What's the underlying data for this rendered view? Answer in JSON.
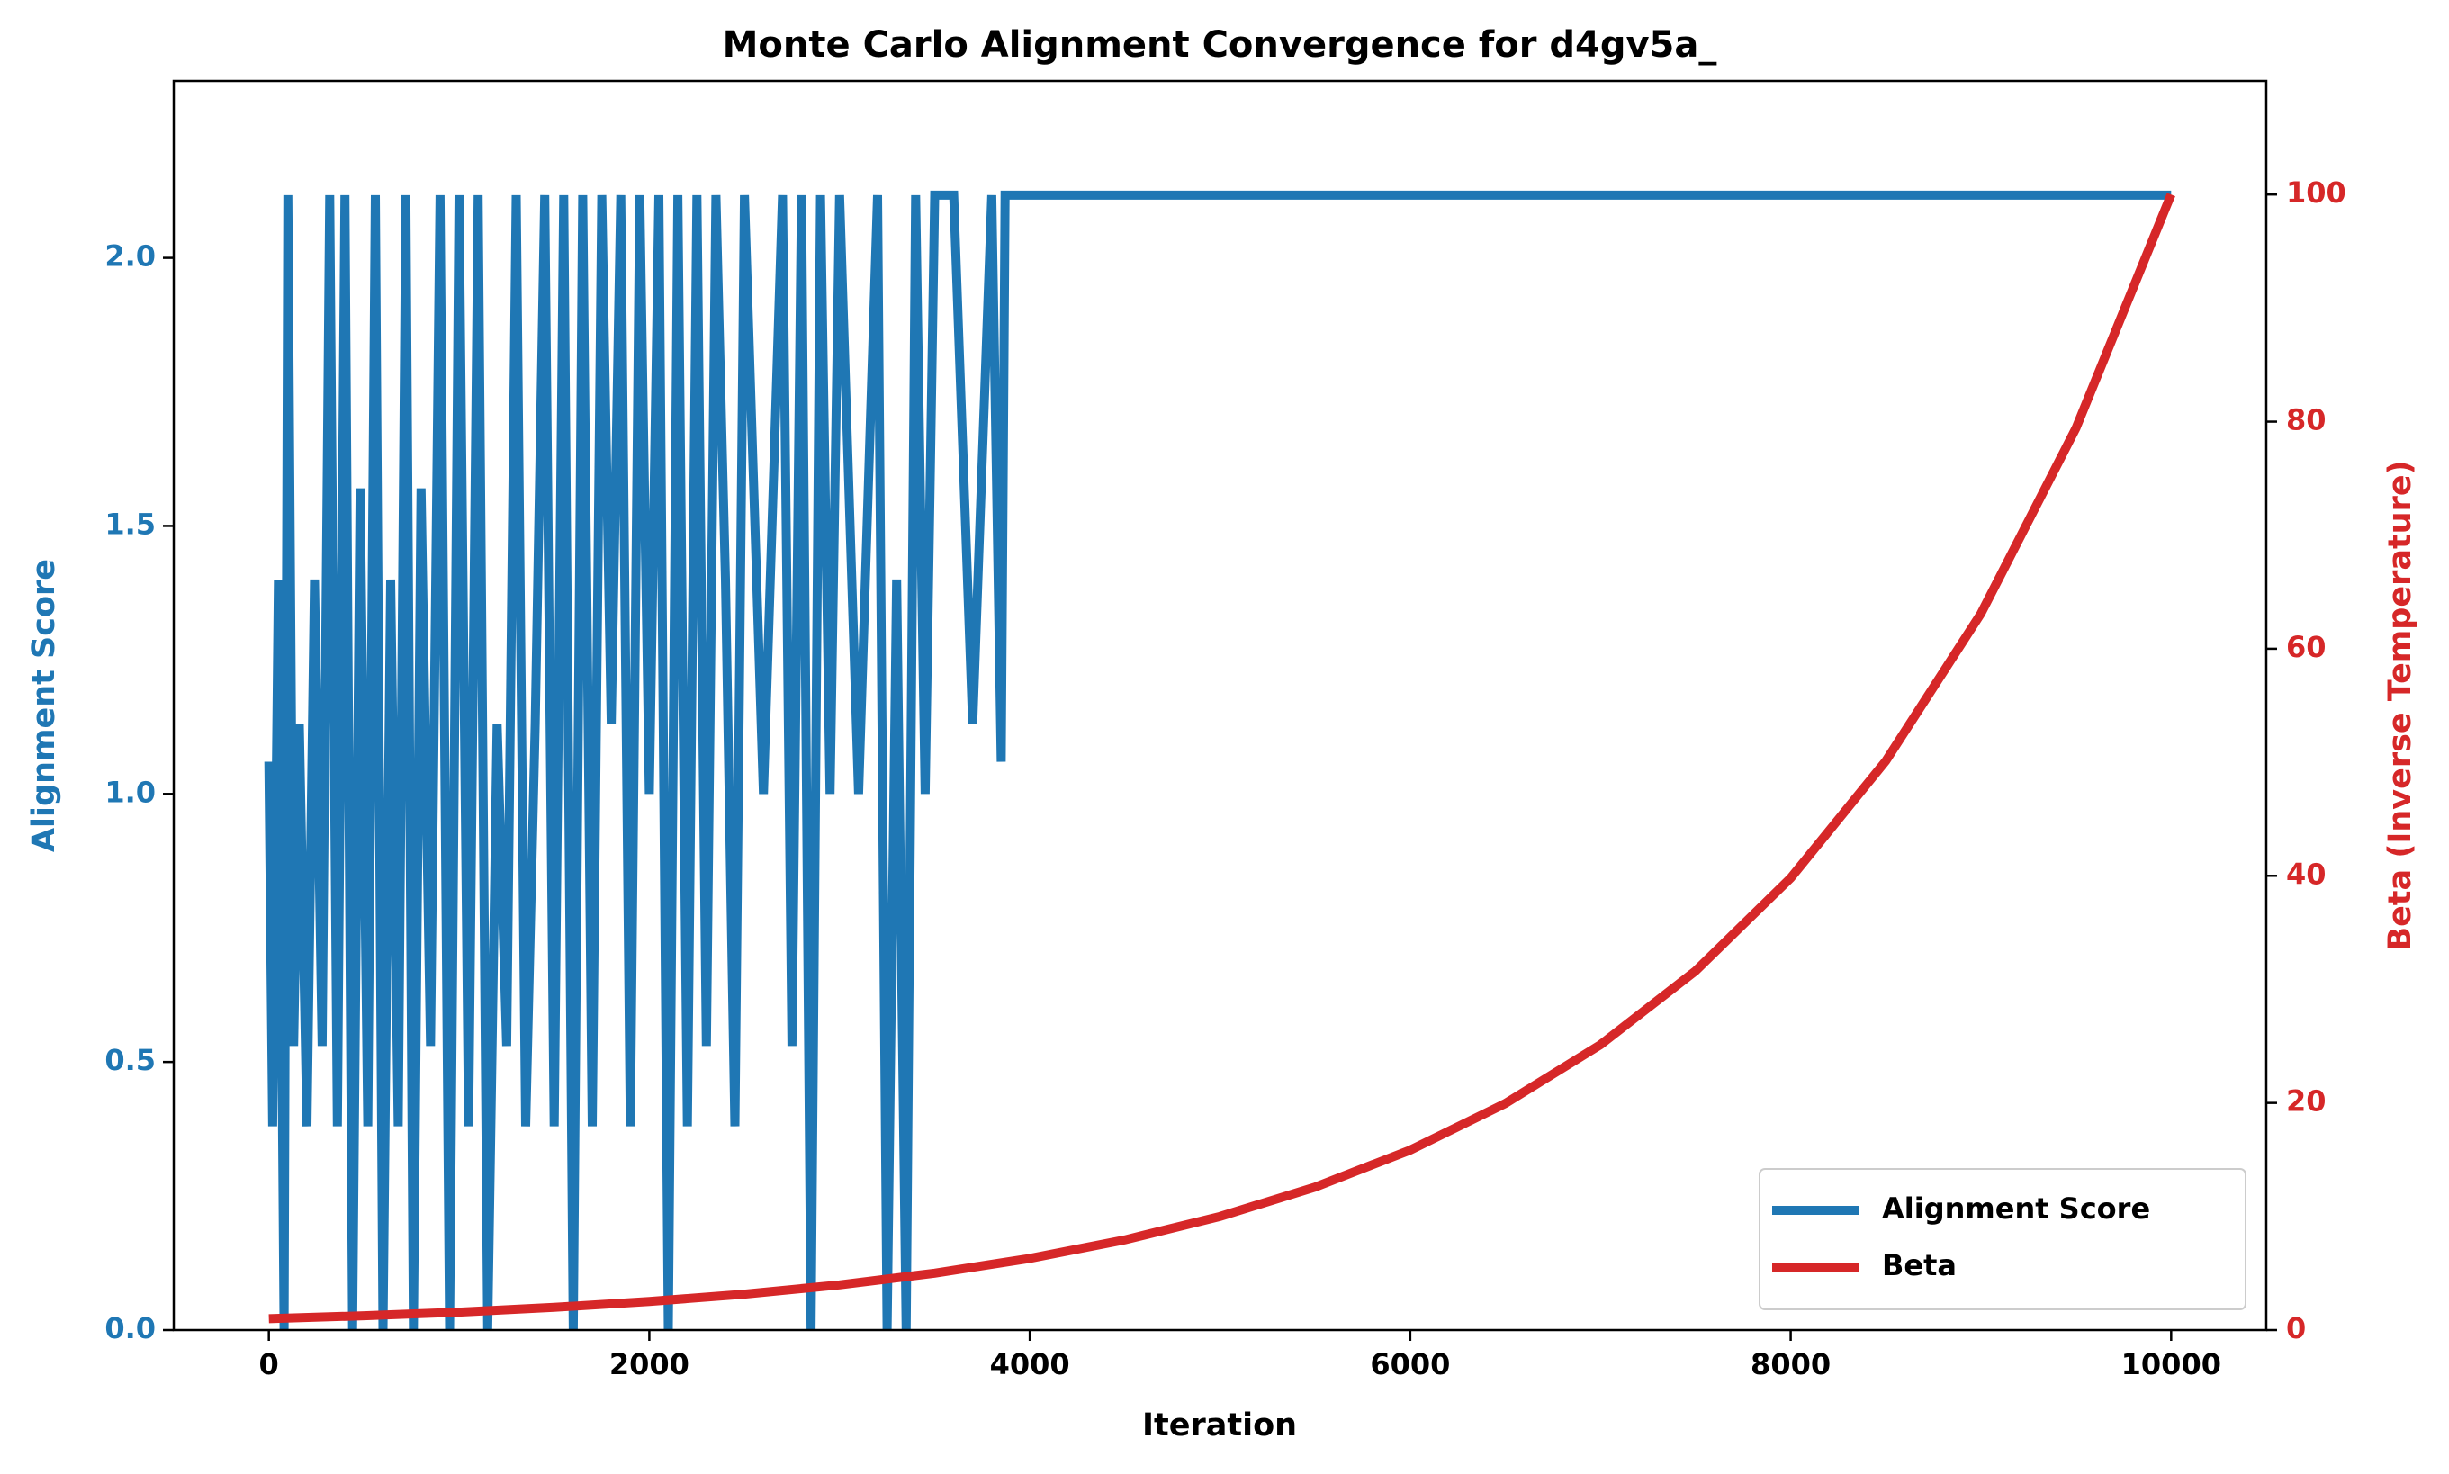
{
  "chart_data": {
    "type": "line",
    "title": "Monte Carlo Alignment Convergence for d4gv5a_",
    "x_label": "Iteration",
    "y_label": "Alignment Score",
    "y2_label": "Beta (Inverse Temperature)",
    "xlim": [
      -500,
      10500
    ],
    "xticks": [
      0,
      2000,
      4000,
      6000,
      8000,
      10000
    ],
    "ylim": [
      0,
      2.33
    ],
    "yticks": [
      {
        "value": 0,
        "label": "0.0"
      },
      0.5,
      {
        "value": 1,
        "label": "1.0"
      },
      1.5,
      {
        "value": 2,
        "label": "2.0"
      }
    ],
    "y2lim": [
      0,
      110
    ],
    "y2ticks": [
      0,
      20,
      40,
      60,
      80,
      100
    ],
    "legend": "lower right",
    "grid": false,
    "series": [
      {
        "name": "Alignment Score",
        "color": "#1f77b4",
        "axis": "y",
        "x": [
          0,
          20,
          50,
          80,
          100,
          130,
          160,
          200,
          240,
          280,
          320,
          360,
          400,
          440,
          480,
          520,
          560,
          600,
          640,
          680,
          720,
          760,
          800,
          850,
          900,
          950,
          1000,
          1050,
          1100,
          1150,
          1200,
          1250,
          1300,
          1350,
          1400,
          1450,
          1500,
          1550,
          1600,
          1650,
          1700,
          1750,
          1800,
          1850,
          1900,
          1950,
          2000,
          2050,
          2100,
          2150,
          2200,
          2250,
          2300,
          2350,
          2400,
          2450,
          2500,
          2600,
          2700,
          2750,
          2800,
          2850,
          2900,
          2950,
          3000,
          3100,
          3200,
          3250,
          3300,
          3350,
          3400,
          3450,
          3500,
          3600,
          3700,
          3800,
          3850,
          3870,
          10000
        ],
        "values": [
          1.06,
          0.38,
          1.4,
          0,
          2.117,
          0.53,
          1.13,
          0.38,
          1.4,
          0.53,
          2.117,
          0.38,
          2.117,
          0,
          1.57,
          0.38,
          2.117,
          0,
          1.4,
          0.38,
          2.117,
          0,
          1.57,
          0.53,
          2.117,
          0,
          2.117,
          0.38,
          2.117,
          0,
          1.13,
          0.53,
          2.117,
          0.38,
          1.13,
          2.117,
          0.38,
          2.117,
          0,
          2.117,
          0.38,
          2.117,
          1.13,
          2.117,
          0.38,
          2.117,
          1.0,
          2.117,
          0,
          2.117,
          0.38,
          2.117,
          0.53,
          2.117,
          1.4,
          0.38,
          2.117,
          1.0,
          2.117,
          0.53,
          2.117,
          0,
          2.117,
          1.0,
          2.117,
          1.0,
          2.117,
          0,
          1.4,
          0,
          2.117,
          1.0,
          2.117,
          2.117,
          1.13,
          2.117,
          1.06,
          2.117,
          2.117
        ]
      },
      {
        "name": "Beta",
        "color": "#d62728",
        "axis": "y2",
        "x": [
          0,
          500,
          1000,
          1500,
          2000,
          2500,
          3000,
          3500,
          4000,
          4500,
          5000,
          5500,
          6000,
          6500,
          7000,
          7500,
          8000,
          8500,
          9000,
          9500,
          10000
        ],
        "values": [
          1,
          1.26,
          1.58,
          2.0,
          2.51,
          3.16,
          3.98,
          5.01,
          6.31,
          7.94,
          10,
          12.59,
          15.85,
          19.95,
          25.12,
          31.62,
          39.81,
          50.12,
          63.1,
          79.43,
          100
        ]
      }
    ]
  }
}
